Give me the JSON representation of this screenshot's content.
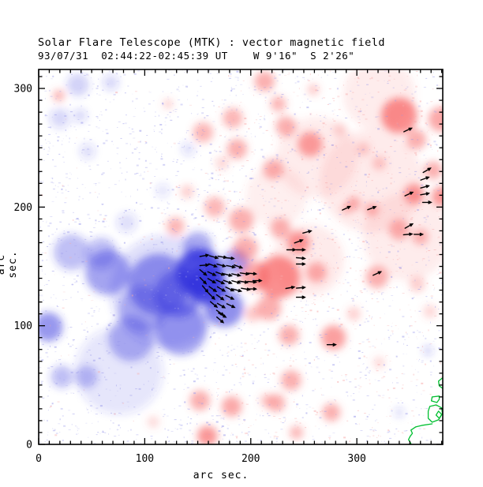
{
  "title": "Solar Flare Telescope (MTK) : vector magnetic field",
  "subtitle": "93/07/31  02:44:22-02:45:39 UT    W 9'16\"  S 2'26\"",
  "chart_data": {
    "type": "heatmap",
    "title": "Solar Flare Telescope (MTK) : vector magnetic field",
    "subtitle": "93/07/31  02:44:22-02:45:39 UT    W 9'16\"  S 2'26\"",
    "xlabel": "arc sec.",
    "ylabel": "arc sec.",
    "xlim": [
      0,
      381
    ],
    "ylim": [
      0,
      316
    ],
    "xticks": [
      0,
      100,
      200,
      300
    ],
    "yticks": [
      0,
      100,
      200,
      300
    ],
    "minor_tick_step": 10,
    "grid": false,
    "colors": {
      "positive_polarity": "#f86060",
      "negative_polarity": "#3333dd",
      "positive_speckle": "#f7a8a8",
      "negative_speckle": "#9898ea",
      "contour": "#00c030",
      "vector": "#000000",
      "axis": "#000000",
      "background": "#ffffff"
    },
    "blob_format": "[x_arcsec, y_arcsec, radius_arcsec, opacity]",
    "blobs_negative": [
      [
        31,
        162,
        16,
        0.3
      ],
      [
        65,
        145,
        20,
        0.45
      ],
      [
        113,
        135,
        27,
        0.5
      ],
      [
        152,
        145,
        21,
        0.85
      ],
      [
        159,
        134,
        17,
        0.8
      ],
      [
        134,
        97,
        23,
        0.45
      ],
      [
        87,
        89,
        20,
        0.35
      ],
      [
        175,
        115,
        17,
        0.55
      ],
      [
        9,
        99,
        13,
        0.5
      ],
      [
        22,
        57,
        10,
        0.3
      ],
      [
        45,
        57,
        10,
        0.3
      ],
      [
        37,
        303,
        10,
        0.22
      ],
      [
        68,
        305,
        7,
        0.18
      ],
      [
        150,
        167,
        13,
        0.4
      ],
      [
        186,
        154,
        11,
        0.5
      ],
      [
        98,
        114,
        21,
        0.35
      ],
      [
        132,
        127,
        21,
        0.5
      ],
      [
        367,
        79,
        4,
        0.25
      ],
      [
        340,
        27,
        4,
        0.2
      ],
      [
        76,
        62,
        39,
        0.12
      ],
      [
        20,
        275,
        9,
        0.18
      ],
      [
        39,
        277,
        6,
        0.18
      ],
      [
        46,
        247,
        7,
        0.15
      ],
      [
        83,
        187,
        9,
        0.15
      ],
      [
        141,
        249,
        6,
        0.15
      ],
      [
        117,
        214,
        6,
        0.13
      ],
      [
        120,
        129,
        50,
        0.15
      ],
      [
        59,
        161,
        14,
        0.3
      ]
    ],
    "blobs_positive": [
      [
        19,
        294,
        5,
        0.5
      ],
      [
        122,
        287,
        4,
        0.35
      ],
      [
        155,
        263,
        9,
        0.45
      ],
      [
        183,
        275,
        9,
        0.45
      ],
      [
        213,
        306,
        9,
        0.5
      ],
      [
        226,
        287,
        7,
        0.45
      ],
      [
        187,
        249,
        9,
        0.5
      ],
      [
        233,
        268,
        9,
        0.5
      ],
      [
        256,
        253,
        11,
        0.6
      ],
      [
        221,
        232,
        9,
        0.5
      ],
      [
        340,
        277,
        16,
        0.7
      ],
      [
        356,
        257,
        9,
        0.5
      ],
      [
        379,
        274,
        11,
        0.55
      ],
      [
        321,
        237,
        6,
        0.35
      ],
      [
        372,
        231,
        8,
        0.5
      ],
      [
        354,
        211,
        9,
        0.65
      ],
      [
        380,
        209,
        9,
        0.65
      ],
      [
        297,
        203,
        6,
        0.5
      ],
      [
        314,
        198,
        6,
        0.5
      ],
      [
        290,
        198,
        4,
        0.45
      ],
      [
        245,
        170,
        10,
        0.65
      ],
      [
        228,
        182,
        9,
        0.5
      ],
      [
        340,
        181,
        9,
        0.5
      ],
      [
        360,
        175,
        7,
        0.45
      ],
      [
        226,
        141,
        19,
        0.7
      ],
      [
        204,
        142,
        13,
        0.55
      ],
      [
        217,
        115,
        11,
        0.5
      ],
      [
        262,
        145,
        9,
        0.5
      ],
      [
        319,
        141,
        10,
        0.5
      ],
      [
        357,
        135,
        7,
        0.3
      ],
      [
        236,
        92,
        9,
        0.5
      ],
      [
        278,
        90,
        11,
        0.6
      ],
      [
        202,
        110,
        7,
        0.35
      ],
      [
        238,
        54,
        9,
        0.5
      ],
      [
        215,
        37,
        6,
        0.35
      ],
      [
        276,
        27,
        8,
        0.5
      ],
      [
        152,
        37,
        9,
        0.5
      ],
      [
        182,
        32,
        9,
        0.55
      ],
      [
        224,
        35,
        8,
        0.5
      ],
      [
        159,
        7,
        9,
        0.65
      ],
      [
        108,
        19,
        5,
        0.25
      ],
      [
        243,
        10,
        6,
        0.45
      ],
      [
        297,
        110,
        6,
        0.3
      ],
      [
        173,
        237,
        6,
        0.25
      ],
      [
        140,
        213,
        6,
        0.3
      ],
      [
        166,
        200,
        9,
        0.45
      ],
      [
        129,
        184,
        8,
        0.45
      ],
      [
        191,
        189,
        11,
        0.5
      ],
      [
        195,
        165,
        11,
        0.5
      ],
      [
        314,
        222,
        46,
        0.13
      ],
      [
        262,
        242,
        36,
        0.12
      ],
      [
        347,
        175,
        39,
        0.12
      ],
      [
        254,
        155,
        32,
        0.13
      ],
      [
        321,
        295,
        32,
        0.12
      ],
      [
        224,
        209,
        27,
        0.1
      ],
      [
        369,
        112,
        6,
        0.25
      ],
      [
        321,
        69,
        5,
        0.25
      ],
      [
        259,
        299,
        5,
        0.35
      ],
      [
        306,
        249,
        6,
        0.3
      ],
      [
        284,
        265,
        6,
        0.25
      ]
    ],
    "vector_format": "[x_arcsec, y_arcsec, direction_deg]",
    "vector_length_arcsec": 8,
    "vectors": [
      [
        156,
        159,
        10
      ],
      [
        165,
        158,
        -15
      ],
      [
        173,
        158,
        -10
      ],
      [
        180,
        157,
        -5
      ],
      [
        156,
        151,
        5
      ],
      [
        164,
        151,
        -20
      ],
      [
        172,
        151,
        -15
      ],
      [
        181,
        150,
        -12
      ],
      [
        188,
        150,
        -20
      ],
      [
        155,
        145,
        -40
      ],
      [
        163,
        144,
        -25
      ],
      [
        171,
        144,
        -20
      ],
      [
        178,
        143,
        -15
      ],
      [
        186,
        143,
        -12
      ],
      [
        194,
        144,
        -8
      ],
      [
        201,
        144,
        -5
      ],
      [
        155,
        138,
        -45
      ],
      [
        163,
        138,
        -30
      ],
      [
        171,
        137,
        -25
      ],
      [
        178,
        137,
        -20
      ],
      [
        186,
        137,
        -15
      ],
      [
        193,
        137,
        -10
      ],
      [
        201,
        137,
        -5
      ],
      [
        206,
        138,
        0
      ],
      [
        157,
        131,
        -50
      ],
      [
        164,
        131,
        -35
      ],
      [
        172,
        131,
        -30
      ],
      [
        180,
        131,
        -25
      ],
      [
        187,
        130,
        -15
      ],
      [
        195,
        131,
        -10
      ],
      [
        201,
        131,
        0
      ],
      [
        163,
        125,
        -45
      ],
      [
        171,
        124,
        -35
      ],
      [
        180,
        124,
        -25
      ],
      [
        165,
        118,
        -40
      ],
      [
        172,
        117,
        -30
      ],
      [
        181,
        117,
        -25
      ],
      [
        171,
        111,
        -35
      ],
      [
        173,
        109,
        -30
      ],
      [
        171,
        105,
        -40
      ],
      [
        348,
        265,
        25
      ],
      [
        366,
        231,
        30
      ],
      [
        364,
        224,
        20
      ],
      [
        364,
        217,
        15
      ],
      [
        349,
        211,
        25
      ],
      [
        364,
        211,
        10
      ],
      [
        366,
        204,
        0
      ],
      [
        290,
        199,
        25
      ],
      [
        314,
        199,
        20
      ],
      [
        349,
        184,
        30
      ],
      [
        348,
        177,
        5
      ],
      [
        358,
        177,
        0
      ],
      [
        253,
        179,
        15
      ],
      [
        245,
        171,
        20
      ],
      [
        238,
        164,
        0
      ],
      [
        247,
        164,
        0
      ],
      [
        247,
        157,
        -5
      ],
      [
        247,
        152,
        0
      ],
      [
        319,
        144,
        25
      ],
      [
        237,
        132,
        10
      ],
      [
        247,
        132,
        5
      ],
      [
        247,
        124,
        0
      ],
      [
        276,
        84,
        0
      ]
    ],
    "contours": [
      {
        "closed": false,
        "points": [
          [
            380.7,
            56
          ],
          [
            377,
            53.3
          ],
          [
            377.7,
            49.3
          ],
          [
            380.7,
            47.3
          ]
        ]
      },
      {
        "closed": true,
        "points": [
          [
            377.7,
            40.7
          ],
          [
            371,
            40
          ],
          [
            370.3,
            36.7
          ],
          [
            375.5,
            35.3
          ],
          [
            377.7,
            38
          ]
        ]
      },
      {
        "closed": true,
        "points": [
          [
            368.8,
            32
          ],
          [
            374.7,
            33.3
          ],
          [
            380,
            30.7
          ],
          [
            380.7,
            26
          ],
          [
            377,
            20.7
          ],
          [
            371,
            18.7
          ],
          [
            367.3,
            22
          ],
          [
            367.3,
            28
          ]
        ]
      },
      {
        "closed": true,
        "points": [
          [
            377,
            28
          ],
          [
            374.7,
            24.7
          ],
          [
            377.7,
            22
          ],
          [
            380,
            25.3
          ]
        ]
      },
      {
        "closed": false,
        "points": [
          [
            371,
            17.3
          ],
          [
            361.3,
            16
          ],
          [
            355.4,
            14.7
          ],
          [
            351,
            12
          ],
          [
            352.4,
            9.3
          ],
          [
            350.2,
            6.7
          ],
          [
            348.7,
            4
          ],
          [
            351,
            0.7
          ],
          [
            349,
            0
          ]
        ]
      }
    ]
  }
}
